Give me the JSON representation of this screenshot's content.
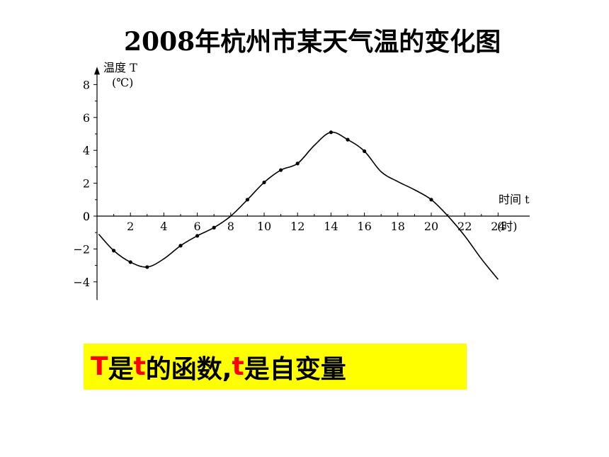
{
  "title": "2008年杭州市某天气温的变化图",
  "chart_data": {
    "type": "line",
    "title": "2008年杭州市某天气温的变化图",
    "ylabel": "温度 T",
    "yunit": "(℃)",
    "xlabel": "时间 t",
    "xunit": "(时)",
    "xlim": [
      0,
      25
    ],
    "ylim": [
      -5,
      9
    ],
    "xticks": [
      2,
      4,
      6,
      8,
      10,
      12,
      14,
      16,
      18,
      20,
      22,
      24
    ],
    "yticks": [
      -4,
      -2,
      0,
      2,
      4,
      6,
      8
    ],
    "grid": false,
    "series": [
      {
        "points": [
          [
            0.1,
            -1.1
          ],
          [
            1,
            -2.1
          ],
          [
            2,
            -2.8
          ],
          [
            3,
            -3.1
          ],
          [
            4,
            -2.6
          ],
          [
            5,
            -1.8
          ],
          [
            6,
            -1.2
          ],
          [
            7,
            -0.7
          ],
          [
            8,
            0
          ],
          [
            9,
            1.0
          ],
          [
            10,
            2.05
          ],
          [
            11,
            2.8
          ],
          [
            12,
            3.2
          ],
          [
            13,
            4.3
          ],
          [
            14,
            5.1
          ],
          [
            15,
            4.65
          ],
          [
            16,
            3.95
          ],
          [
            17,
            2.7
          ],
          [
            18,
            2.1
          ],
          [
            19,
            1.6
          ],
          [
            20,
            1.0
          ],
          [
            21,
            0
          ],
          [
            22,
            -1.2
          ],
          [
            23,
            -2.6
          ],
          [
            24,
            -3.85
          ]
        ],
        "markers_x": [
          1,
          2,
          3,
          5,
          6,
          7,
          9,
          10,
          11,
          12,
          14,
          15,
          16,
          20
        ]
      }
    ]
  },
  "note": {
    "part1": "T",
    "part2": "是",
    "part3": "t",
    "part4": "的函数,",
    "part5": "t",
    "part6": "是自变量"
  }
}
